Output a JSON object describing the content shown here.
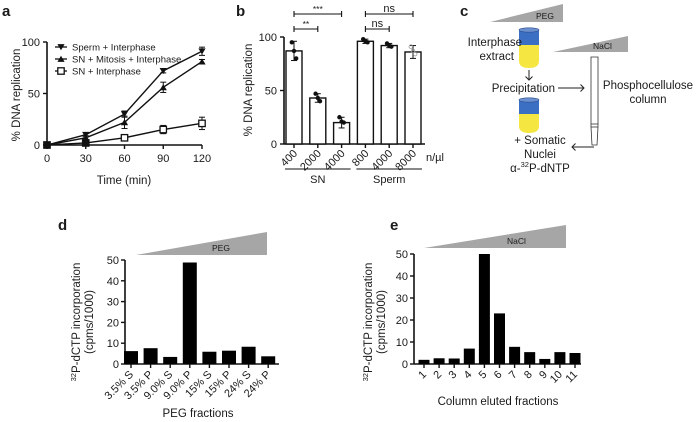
{
  "panels": {
    "a": "a",
    "b": "b",
    "c": "c",
    "d": "d",
    "e": "e"
  },
  "chart_data": [
    {
      "id": "a",
      "type": "line",
      "xlabel": "Time (min)",
      "ylabel": "% DNA replication",
      "x": [
        0,
        30,
        60,
        90,
        120
      ],
      "xticks": [
        "0",
        "30",
        "60",
        "90",
        "120"
      ],
      "yticks": [
        "0",
        "50",
        "100"
      ],
      "xlim": [
        0,
        120
      ],
      "ylim": [
        0,
        100
      ],
      "legend_position": "top-left",
      "series": [
        {
          "name": "Sperm + Interphase",
          "marker": "triangle-down",
          "values": [
            0,
            10,
            30,
            72,
            91
          ],
          "errors": [
            1,
            2,
            3,
            2,
            4
          ]
        },
        {
          "name": "SN + Mitosis + Interphase",
          "marker": "triangle-up",
          "values": [
            0,
            7,
            22,
            56,
            81
          ],
          "errors": [
            1,
            2,
            6,
            5,
            2
          ]
        },
        {
          "name": "SN + Interphase",
          "marker": "square",
          "values": [
            0,
            2,
            7,
            15,
            21
          ],
          "errors": [
            1,
            1,
            3,
            4,
            6
          ]
        }
      ]
    },
    {
      "id": "b",
      "type": "bar",
      "ylabel": "% DNA replication",
      "categories": [
        "400",
        "2000",
        "4000",
        "800",
        "4000",
        "8000"
      ],
      "unit_label": "n/µl",
      "groups": [
        {
          "name": "SN",
          "range": [
            0,
            2
          ]
        },
        {
          "name": "Sperm",
          "range": [
            3,
            5
          ]
        }
      ],
      "values": [
        87,
        43,
        20,
        96,
        92,
        86
      ],
      "errors": [
        9,
        4,
        5,
        2,
        2,
        6
      ],
      "points": [
        [
          95,
          87,
          80
        ],
        [
          47,
          43,
          40
        ],
        [
          25,
          21,
          20
        ],
        [
          98,
          96,
          95
        ],
        [
          94,
          92,
          91
        ],
        [
          91,
          87,
          84
        ]
      ],
      "yticks": [
        "0",
        "50",
        "100"
      ],
      "ylim": [
        0,
        100
      ],
      "significance": [
        {
          "from": 0,
          "to": 1,
          "label": "**"
        },
        {
          "from": 0,
          "to": 2,
          "label": "***"
        },
        {
          "from": 3,
          "to": 4,
          "label": "ns"
        },
        {
          "from": 3,
          "to": 5,
          "label": "ns"
        }
      ]
    },
    {
      "id": "d",
      "type": "bar",
      "title_wedge": "PEG",
      "xlabel": "PEG fractions",
      "ylabel_sup": "32",
      "ylabel_line1": "P-dCTP incorporation",
      "ylabel_line2": "(cpms/1000)",
      "categories": [
        "3.5% S",
        "3.5% P",
        "9.0% S",
        "9.0% P",
        "15% S",
        "15% P",
        "24% S",
        "24% P"
      ],
      "values": [
        6.2,
        7.6,
        3.4,
        48.8,
        5.9,
        6.4,
        8.3,
        3.7
      ],
      "yticks": [
        "0",
        "10",
        "20",
        "30",
        "40",
        "50"
      ],
      "ylim": [
        0,
        50
      ]
    },
    {
      "id": "e",
      "type": "bar",
      "title_wedge": "NaCl",
      "xlabel": "Column eluted fractions",
      "ylabel_sup": "32",
      "ylabel_line1": "P-dCTP incorporation",
      "ylabel_line2": "(cpms/1000)",
      "categories": [
        "1",
        "2",
        "3",
        "4",
        "5",
        "6",
        "7",
        "8",
        "9",
        "10",
        "11"
      ],
      "values": [
        1.9,
        2.6,
        2.5,
        7.0,
        50,
        23,
        7.8,
        5.4,
        2.3,
        5.4,
        5.0
      ],
      "yticks": [
        "0",
        "10",
        "20",
        "30",
        "40",
        "50"
      ],
      "ylim": [
        0,
        50
      ]
    }
  ],
  "diagram_c": {
    "peg_label": "PEG",
    "nacl_label": "NaCl",
    "extract_line1": "Interphase",
    "extract_line2": "extract",
    "precipitation": "Precipitation",
    "column_line1": "Phosphocellulose",
    "column_line2": "column",
    "nuclei_line1": "+ Somatic",
    "nuclei_line2": "Nuclei",
    "ntp_prefix": "α-",
    "ntp_sup": "32",
    "ntp_suffix": "P-dNTP",
    "colors": {
      "tube_top": "#3b6fc4",
      "tube_bottom": "#f5e642",
      "wedge": "#a6a6a6"
    }
  }
}
